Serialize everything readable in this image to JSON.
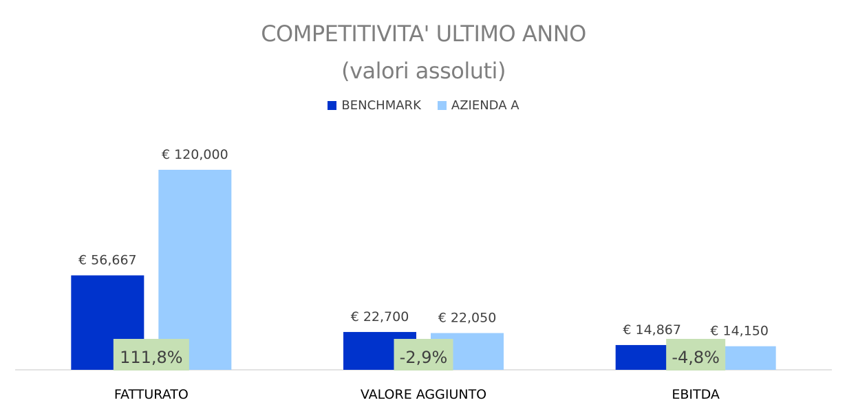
{
  "chart_data": {
    "type": "bar",
    "title": "COMPETITIVITA' ULTIMO ANNO",
    "subtitle": "(valori assoluti)",
    "categories": [
      "FATTURATO",
      "VALORE AGGIUNTO",
      "EBITDA"
    ],
    "series": [
      {
        "name": "BENCHMARK",
        "color": "#0033cc",
        "values": [
          56667,
          22700,
          14867
        ],
        "labels": [
          "€ 56,667",
          "€ 22,700",
          "€ 14,867"
        ]
      },
      {
        "name": "AZIENDA A",
        "color": "#99ccff",
        "values": [
          120000,
          22050,
          14150
        ],
        "labels": [
          "€ 120,000",
          "€ 22,050",
          "€ 14,150"
        ]
      }
    ],
    "annotations": {
      "values": [
        "111,8%",
        "-2,9%",
        "-4,8%"
      ],
      "background": "#c6e0b4",
      "text_color": "#404040"
    },
    "ylim": [
      0,
      140000
    ],
    "grid": false,
    "legend_position": "top"
  }
}
